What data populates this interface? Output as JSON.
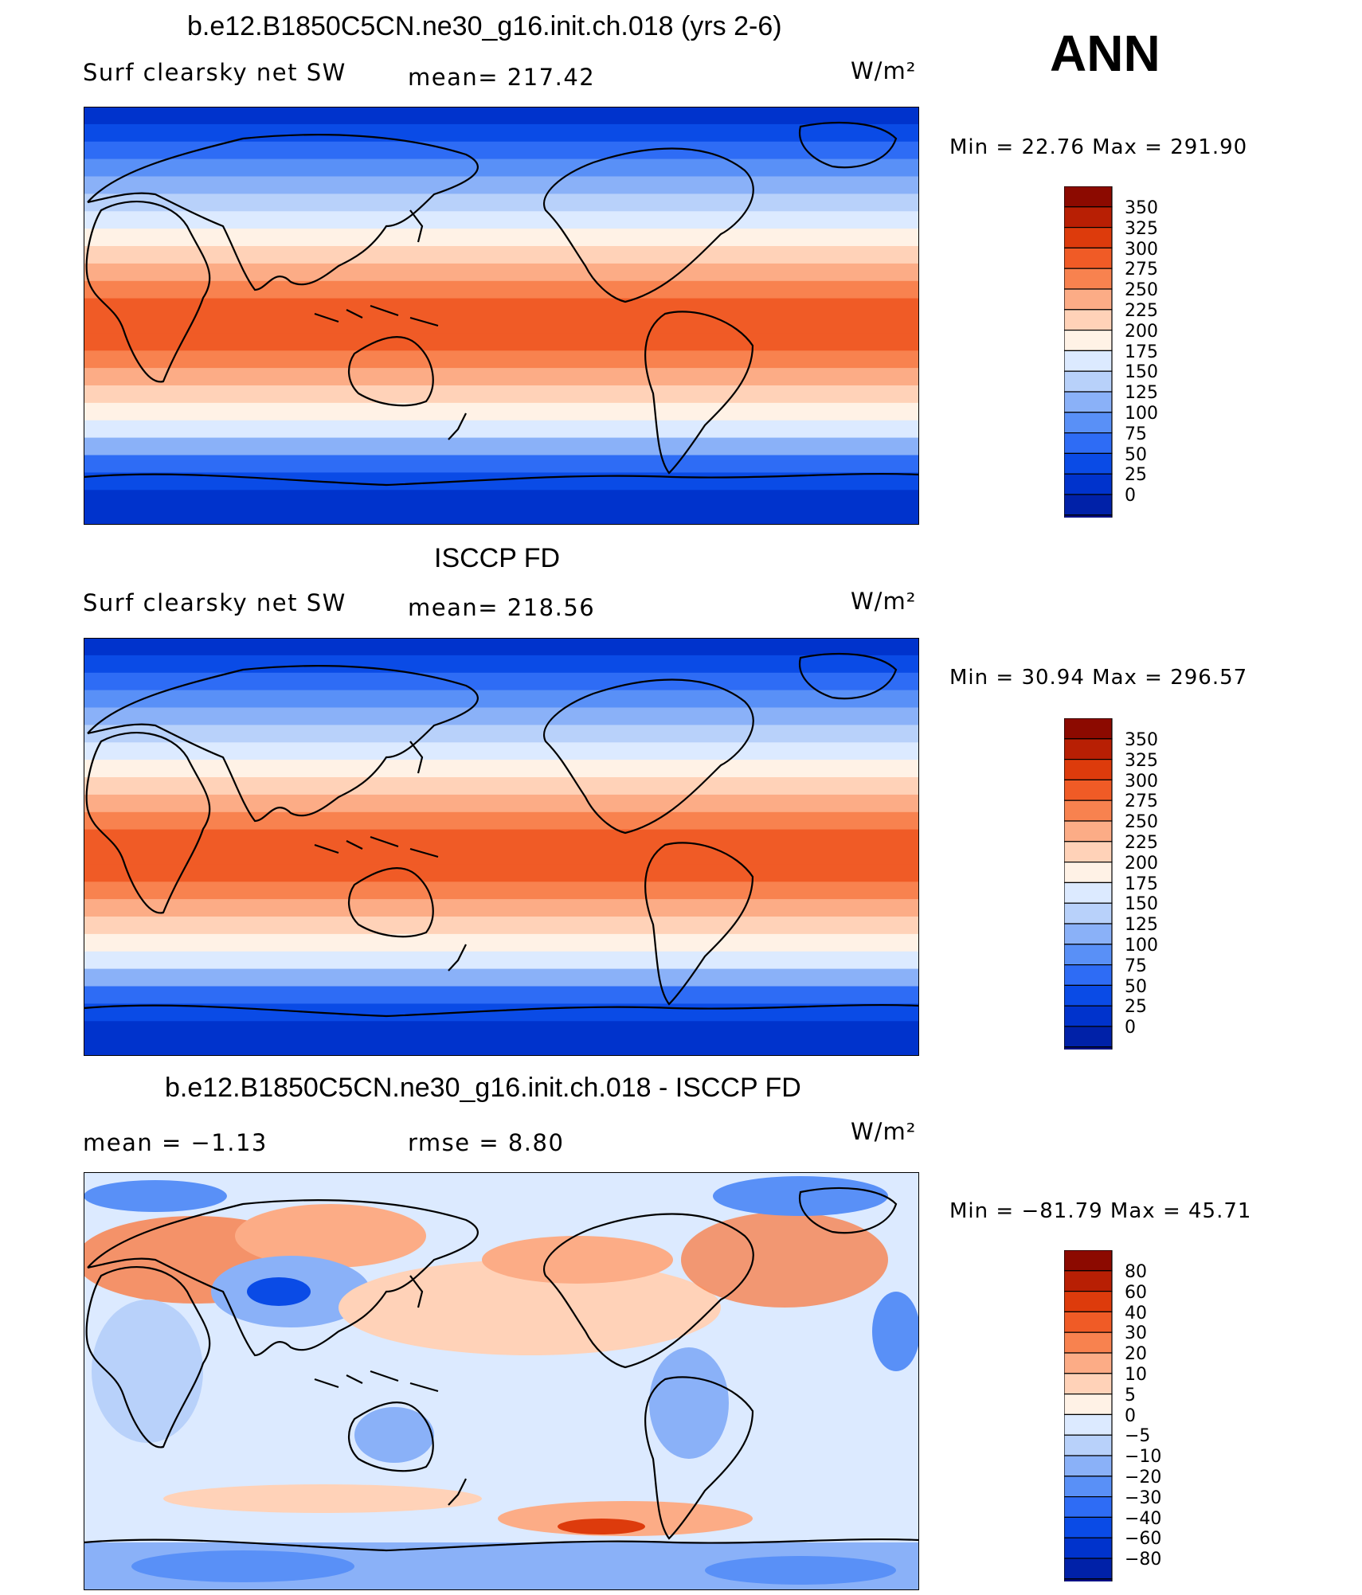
{
  "season": "ANN",
  "colors": {
    "abs_scale": [
      "#000f85",
      "#0021a8",
      "#0033cc",
      "#0a4be6",
      "#2e6cf5",
      "#5990f7",
      "#8ab1f8",
      "#b8d1fa",
      "#dceaff",
      "#fff2e6",
      "#ffd2b8",
      "#fcac86",
      "#f8824f",
      "#f05b26",
      "#dd3b0c",
      "#b81f04",
      "#8c0a00"
    ],
    "diff_scale": [
      "#000f85",
      "#0021a8",
      "#0033cc",
      "#0a4be6",
      "#2e6cf5",
      "#5990f7",
      "#8ab1f8",
      "#b8d1fa",
      "#dceaff",
      "#fff2e6",
      "#ffd2b8",
      "#fcac86",
      "#f8824f",
      "#f05b26",
      "#dd3b0c",
      "#b81f04",
      "#8c0a00"
    ]
  },
  "chart_data": [
    {
      "type": "heatmap",
      "title": "b.e12.B1850C5CN.ne30_g16.init.ch.018 (yrs 2-6)",
      "left_label": "Surf clearsky net SW",
      "center_label": "mean= 217.42",
      "units": "W/m²",
      "min_max": "Min =   22.76 Max  =  291.90",
      "min": 22.76,
      "max": 291.9,
      "mean": 217.42,
      "colorbar_levels": [
        "350",
        "325",
        "300",
        "275",
        "250",
        "225",
        "200",
        "175",
        "150",
        "125",
        "100",
        "75",
        "50",
        "25",
        "0"
      ]
    },
    {
      "type": "heatmap",
      "title": "ISCCP FD",
      "left_label": "Surf clearsky net SW",
      "center_label": "mean= 218.56",
      "units": "W/m²",
      "min_max": "Min =   30.94 Max  =  296.57",
      "min": 30.94,
      "max": 296.57,
      "mean": 218.56,
      "colorbar_levels": [
        "350",
        "325",
        "300",
        "275",
        "250",
        "225",
        "200",
        "175",
        "150",
        "125",
        "100",
        "75",
        "50",
        "25",
        "0"
      ]
    },
    {
      "type": "heatmap",
      "title": "b.e12.B1850C5CN.ne30_g16.init.ch.018 - ISCCP FD",
      "left_label": "mean =   −1.13",
      "center_label": "rmse =    8.80",
      "units": "W/m²",
      "min_max": "Min = −81.79 Max =   45.71",
      "min": -81.79,
      "max": 45.71,
      "mean": -1.13,
      "rmse": 8.8,
      "colorbar_levels": [
        "80",
        "60",
        "40",
        "30",
        "20",
        "10",
        "5",
        "0",
        "−5",
        "−10",
        "−20",
        "−30",
        "−40",
        "−60",
        "−80"
      ]
    }
  ]
}
